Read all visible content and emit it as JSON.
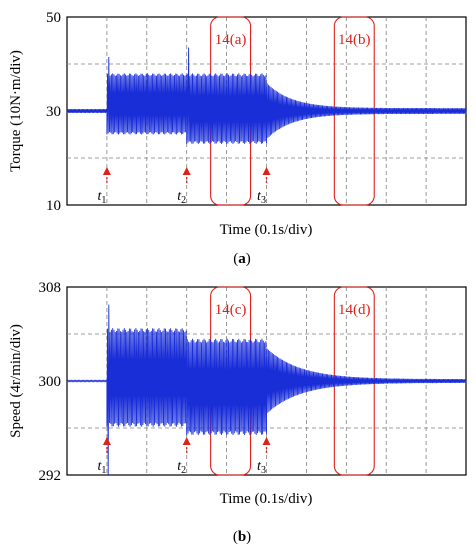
{
  "chart_data": [
    {
      "type": "line",
      "panel_label": "a",
      "ylabel": "Torque (10N·m/div)",
      "xlabel": "Time (0.1s/div)",
      "ylim": [
        10,
        50
      ],
      "yticks": [
        "10",
        "30",
        "50"
      ],
      "x_divisions": 10,
      "y_divisions": 4,
      "grid": true,
      "colors": {
        "signal": "#1a2ed8",
        "marker": "#e0201a",
        "grid": "#808080"
      },
      "markers": [
        {
          "label": "t",
          "sub": "1",
          "x": 1.0
        },
        {
          "label": "t",
          "sub": "2",
          "x": 3.0
        },
        {
          "label": "t",
          "sub": "3",
          "x": 5.0
        }
      ],
      "windows": [
        {
          "label": "14(a)",
          "x": [
            3.6,
            4.6
          ]
        },
        {
          "label": "14(b)",
          "x": [
            6.7,
            7.7
          ]
        }
      ],
      "segments": [
        {
          "x": [
            0.0,
            1.0
          ],
          "center": 30,
          "amp": 0.4,
          "shape": "flat"
        },
        {
          "x": [
            1.0,
            3.0
          ],
          "center": 31.5,
          "amp": 6.5,
          "spike": 41.5,
          "shape": "osc"
        },
        {
          "x": [
            3.0,
            5.0
          ],
          "center": 30.5,
          "amp": 7.5,
          "spike": 43.5,
          "shape": "osc"
        },
        {
          "x": [
            5.0,
            10.0
          ],
          "center": 30,
          "amp": 6.0,
          "decay": 1.6,
          "floor": 0.6,
          "shape": "decay"
        }
      ]
    },
    {
      "type": "line",
      "panel_label": "b",
      "ylabel": "Speed (4r/min/div)",
      "xlabel": "Time (0.1s/div)",
      "ylim": [
        292,
        308
      ],
      "yticks": [
        "292",
        "300",
        "308"
      ],
      "x_divisions": 10,
      "y_divisions": 4,
      "grid": true,
      "colors": {
        "signal": "#1a2ed8",
        "marker": "#e0201a",
        "grid": "#808080"
      },
      "markers": [
        {
          "label": "t",
          "sub": "1",
          "x": 1.0
        },
        {
          "label": "t",
          "sub": "2",
          "x": 3.0
        },
        {
          "label": "t",
          "sub": "3",
          "x": 5.0
        }
      ],
      "windows": [
        {
          "label": "14(c)",
          "x": [
            3.6,
            4.6
          ]
        },
        {
          "label": "14(d)",
          "x": [
            6.7,
            7.7
          ]
        }
      ],
      "segments": [
        {
          "x": [
            0.0,
            1.0
          ],
          "center": 300,
          "amp": 0.05,
          "shape": "flat"
        },
        {
          "x": [
            1.0,
            3.0
          ],
          "center": 300.3,
          "amp": 4.2,
          "spike": 306.5,
          "dip": 292,
          "shape": "osc"
        },
        {
          "x": [
            3.0,
            5.0
          ],
          "center": 299.5,
          "amp": 4.1,
          "shape": "osc"
        },
        {
          "x": [
            5.0,
            10.0
          ],
          "center": 300,
          "amp": 2.8,
          "decay": 1.2,
          "floor": 0.15,
          "shape": "decay"
        }
      ]
    }
  ]
}
